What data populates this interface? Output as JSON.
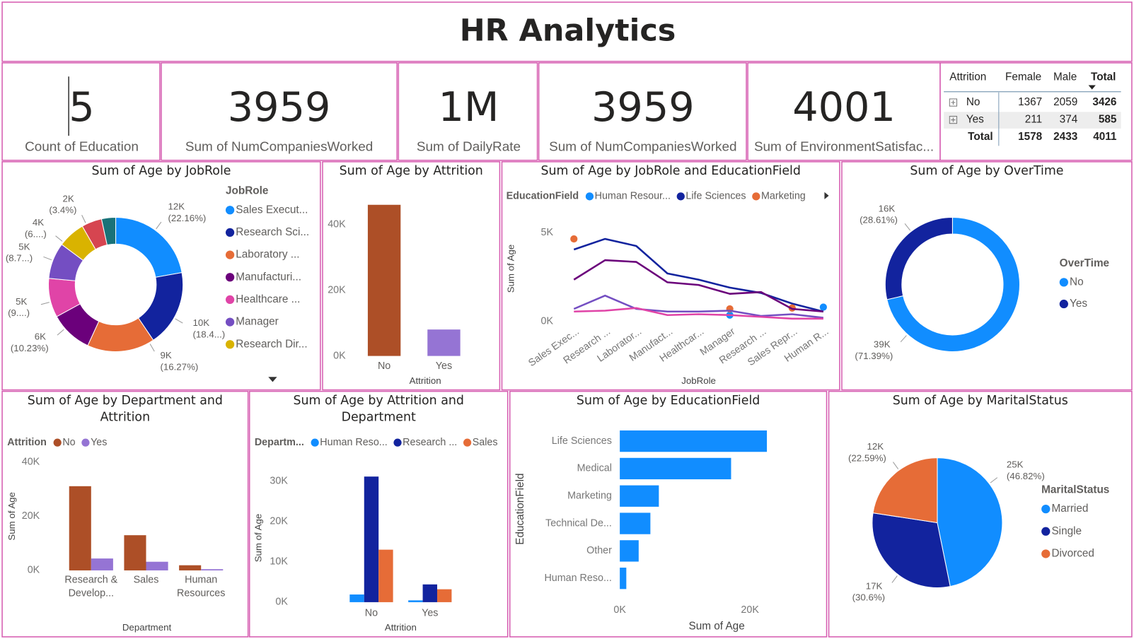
{
  "title": "HR Analytics",
  "cards": [
    {
      "value": 5,
      "label": "Count of Education"
    },
    {
      "value": 3959,
      "label": "Sum of NumCompaniesWorked"
    },
    {
      "value": "1M",
      "label": "Sum of DailyRate"
    },
    {
      "value": 3959,
      "label": "Sum of NumCompaniesWorked"
    },
    {
      "value": 4001,
      "label": "Sum of EnvironmentSatisfac..."
    }
  ],
  "matrix": {
    "header": [
      "Attrition",
      "Female",
      "Male",
      "Total"
    ],
    "rows": [
      [
        "No",
        1367,
        2059,
        3426
      ],
      [
        "Yes",
        211,
        374,
        585
      ],
      [
        "Total",
        1578,
        2433,
        4011
      ]
    ]
  },
  "chart_data": [
    {
      "type": "donut",
      "title": "Sum of Age by JobRole",
      "legend_title": "JobRole",
      "categories": [
        "Sales Execut...",
        "Research Sci...",
        "Laboratory ...",
        "Manufacturi...",
        "Healthcare ...",
        "Manager",
        "Research Dir...",
        null,
        null
      ],
      "values": [
        12019,
        9980,
        8824,
        5548,
        5100,
        4719,
        3560,
        2643,
        1844
      ],
      "value_labels": [
        "12K (22.16%)",
        "10K (18.4...)",
        "9K (16.27%)",
        "6K (10.23%)",
        "5K (9....)",
        "5K (8.7...)",
        "4K (6....)",
        null,
        "2K (3.4%)"
      ],
      "colors": [
        "#118DFF",
        "#12239E",
        "#E66C37",
        "#6B007B",
        "#E044A7",
        "#744EC2",
        "#D9B300",
        "#D64550",
        "#197278"
      ]
    },
    {
      "type": "bar",
      "title": "Sum of Age by Attrition",
      "x_label": "Attrition",
      "categories": [
        "No",
        "Yes"
      ],
      "values": [
        46000,
        8050
      ],
      "colors": [
        "#AD4F27",
        "#9574D4"
      ],
      "ylim": [
        0,
        49000
      ],
      "yticks": [
        {
          "value": 0,
          "label": "0K"
        },
        {
          "value": 20000,
          "label": "20K"
        },
        {
          "value": 40000,
          "label": "40K"
        }
      ]
    },
    {
      "type": "line",
      "title": "Sum of Age by JobRole and EducationField",
      "legend_title": "EducationField",
      "x_label": "JobRole",
      "y_label": "Sum of Age",
      "categories": [
        "Sales Exec...",
        "Research ...",
        "Laborator...",
        "Manufact...",
        "Healthcar...",
        "Manager",
        "Research ...",
        "Sales Repr...",
        "Human R..."
      ],
      "series": [
        {
          "name": "Human Resour...",
          "color": "#118DFF",
          "values": [
            null,
            null,
            null,
            null,
            null,
            350,
            null,
            null,
            800
          ]
        },
        {
          "name": "Life Sciences",
          "color": "#12239E",
          "values": [
            4050,
            4650,
            4250,
            2700,
            2350,
            1900,
            1600,
            1000,
            550
          ]
        },
        {
          "name": "Marketing",
          "color": "#E66C37",
          "values": [
            4650,
            null,
            null,
            null,
            null,
            700,
            null,
            750,
            null
          ]
        },
        {
          "name": null,
          "color": "#6B007B",
          "values": [
            2350,
            3450,
            3350,
            2200,
            2050,
            1550,
            1650,
            700,
            550
          ]
        },
        {
          "name": null,
          "color": "#744EC2",
          "values": [
            700,
            1450,
            700,
            550,
            550,
            600,
            300,
            400,
            200
          ]
        },
        {
          "name": null,
          "color": "#E044A7",
          "values": [
            550,
            600,
            750,
            350,
            400,
            350,
            250,
            150,
            150
          ]
        }
      ],
      "ylim": [
        0,
        5500
      ],
      "yticks": [
        {
          "value": 0,
          "label": "0K"
        },
        {
          "value": 5000,
          "label": "5K"
        }
      ]
    },
    {
      "type": "donut",
      "title": "Sum of Age by OverTime",
      "legend_title": "OverTime",
      "categories": [
        "No",
        "Yes"
      ],
      "values": [
        38720,
        15517
      ],
      "value_labels": [
        "39K (71.39%)",
        "16K (28.61%)"
      ],
      "colors": [
        "#118DFF",
        "#12239E"
      ]
    },
    {
      "type": "bar",
      "title": "Sum of Age by Department and Attrition",
      "legend_title": "Attrition",
      "x_label": "Department",
      "y_label": "Sum of Age",
      "categories": [
        "Research & Develop...",
        "Sales",
        "Human Resources"
      ],
      "series": [
        {
          "name": "No",
          "color": "#AD4F27",
          "values": [
            31100,
            13000,
            1900
          ]
        },
        {
          "name": "Yes",
          "color": "#9574D4",
          "values": [
            4400,
            3200,
            450
          ]
        }
      ],
      "ylim": [
        0,
        40000
      ],
      "yticks": [
        {
          "value": 0,
          "label": "0K"
        },
        {
          "value": 20000,
          "label": "20K"
        },
        {
          "value": 40000,
          "label": "40K"
        }
      ]
    },
    {
      "type": "bar",
      "title": "Sum of Age by Attrition and Department",
      "legend_title": "Departm...",
      "x_label": "Attrition",
      "y_label": "Sum of Age",
      "categories": [
        "No",
        "Yes"
      ],
      "series": [
        {
          "name": "Human Reso...",
          "color": "#118DFF",
          "values": [
            1900,
            450
          ]
        },
        {
          "name": "Research ...",
          "color": "#12239E",
          "values": [
            31100,
            4400
          ]
        },
        {
          "name": "Sales",
          "color": "#E66C37",
          "values": [
            13000,
            3200
          ]
        }
      ],
      "ylim": [
        0,
        32000
      ],
      "yticks": [
        {
          "value": 0,
          "label": "0K"
        },
        {
          "value": 10000,
          "label": "10K"
        },
        {
          "value": 20000,
          "label": "20K"
        },
        {
          "value": 30000,
          "label": "30K"
        }
      ]
    },
    {
      "type": "hbar",
      "title": "Sum of Age by EducationField",
      "x_label": "Sum of Age",
      "y_label": "EducationField",
      "categories": [
        "Life Sciences",
        "Medical",
        "Marketing",
        "Technical De...",
        "Other",
        "Human Reso..."
      ],
      "values": [
        22600,
        17100,
        6000,
        4700,
        2900,
        1000
      ],
      "color": "#118DFF",
      "xlim": [
        0,
        30000
      ],
      "xticks": [
        {
          "value": 0,
          "label": "0K"
        },
        {
          "value": 20000,
          "label": "20K"
        }
      ]
    },
    {
      "type": "pie",
      "title": "Sum of Age by MaritalStatus",
      "legend_title": "MaritalStatus",
      "categories": [
        "Married",
        "Single",
        "Divorced"
      ],
      "values": [
        25394,
        16597,
        12252
      ],
      "value_labels": [
        "25K (46.82%)",
        "17K (30.6%)",
        "12K (22.59%)"
      ],
      "colors": [
        "#118DFF",
        "#12239E",
        "#E66C37"
      ]
    }
  ]
}
